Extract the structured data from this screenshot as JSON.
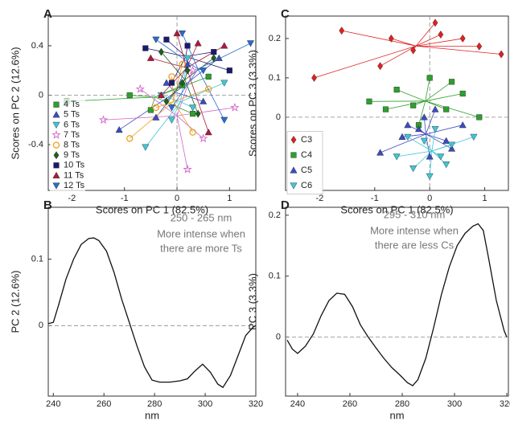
{
  "chart_data": [
    {
      "type": "scatter",
      "panel": "A",
      "xlabel": "Scores on PC 1 (82.5%)",
      "ylabel": "Scores on PC 2 (12.6%)",
      "xlim": [
        -2.45,
        1.5
      ],
      "ylim": [
        -0.77,
        0.64
      ],
      "xticks": [
        -2,
        -1,
        0,
        1
      ],
      "yticks": [
        -0.4,
        0,
        0.4
      ],
      "zero_lines": true,
      "legend": "lower left",
      "series": [
        {
          "name": "4 Ts",
          "color": "#2ca02c",
          "marker": "square",
          "x": [
            -2.1,
            -0.9,
            -0.5,
            0.1,
            0.3,
            0.6
          ],
          "y": [
            -0.05,
            0.0,
            -0.12,
            0.08,
            -0.15,
            0.15
          ]
        },
        {
          "name": "5 Ts",
          "color": "#3b4cc0",
          "marker": "triangle-up",
          "x": [
            -1.1,
            -0.4,
            0.2,
            0.5,
            -0.2,
            0.8
          ],
          "y": [
            -0.28,
            -0.18,
            0.25,
            -0.05,
            0.1,
            0.3
          ]
        },
        {
          "name": "6 Ts",
          "color": "#3fc6d6",
          "marker": "triangle-down",
          "x": [
            -0.6,
            -0.1,
            0.3,
            0.9,
            0.2,
            -0.3
          ],
          "y": [
            -0.42,
            -0.2,
            -0.1,
            0.1,
            0.3,
            0.0
          ]
        },
        {
          "name": "7 Ts",
          "color": "#d163c9",
          "marker": "star",
          "x": [
            -1.4,
            -0.7,
            0.2,
            0.5,
            1.1,
            0.3
          ],
          "y": [
            -0.2,
            0.05,
            -0.6,
            -0.35,
            -0.1,
            0.2
          ]
        },
        {
          "name": "8 Ts",
          "color": "#f0a020",
          "marker": "circle",
          "x": [
            -0.9,
            -0.4,
            -0.1,
            0.3,
            0.6,
            0.1
          ],
          "y": [
            -0.35,
            -0.1,
            0.15,
            -0.3,
            0.05,
            0.25
          ]
        },
        {
          "name": "9 Ts",
          "color": "#1e5f1e",
          "marker": "diamond",
          "x": [
            -0.3,
            0.1,
            0.4,
            0.7,
            -0.2,
            0.2
          ],
          "y": [
            0.35,
            0.1,
            -0.15,
            0.3,
            -0.05,
            0.2
          ]
        },
        {
          "name": "10 Ts",
          "color": "#1a1a6e",
          "marker": "square",
          "x": [
            -0.6,
            -0.2,
            0.2,
            0.7,
            1.0,
            -0.1
          ],
          "y": [
            0.38,
            0.45,
            0.4,
            0.35,
            0.2,
            0.1
          ]
        },
        {
          "name": "11 Ts",
          "color": "#b0183c",
          "marker": "triangle-up",
          "x": [
            -0.5,
            0.0,
            0.4,
            0.9,
            -0.3,
            0.6
          ],
          "y": [
            0.3,
            0.5,
            0.42,
            0.4,
            0.0,
            -0.3
          ]
        },
        {
          "name": "12 Ts",
          "color": "#2a6ad0",
          "marker": "triangle-down",
          "x": [
            -0.4,
            0.1,
            0.5,
            1.4,
            0.9,
            -0.1
          ],
          "y": [
            0.45,
            0.5,
            0.2,
            0.42,
            -0.2,
            -0.1
          ]
        }
      ]
    },
    {
      "type": "line",
      "panel": "B",
      "xlabel": "nm",
      "ylabel": "PC 2 (12.6%)",
      "xlim": [
        238,
        320
      ],
      "ylim": [
        -0.106,
        0.178
      ],
      "xticks": [
        240,
        260,
        280,
        300,
        320
      ],
      "yticks": [
        0,
        0.1
      ],
      "zero_lines": true,
      "color": "#111111",
      "annotations": [
        "250 - 265 nm",
        "More intense when",
        "there are more Ts"
      ],
      "x": [
        238,
        240,
        242,
        245,
        248,
        251,
        254,
        256,
        258,
        261,
        264,
        267,
        270,
        273,
        276,
        279,
        282,
        286,
        290,
        293,
        296,
        299,
        302,
        305,
        307,
        310,
        313,
        316,
        319,
        320
      ],
      "values": [
        0.003,
        0.005,
        0.03,
        0.07,
        0.1,
        0.122,
        0.131,
        0.132,
        0.128,
        0.112,
        0.08,
        0.04,
        0.005,
        -0.03,
        -0.062,
        -0.082,
        -0.085,
        -0.085,
        -0.083,
        -0.08,
        -0.068,
        -0.058,
        -0.07,
        -0.088,
        -0.093,
        -0.075,
        -0.045,
        -0.015,
        -0.002,
        0
      ]
    },
    {
      "type": "scatter",
      "panel": "C",
      "xlabel": "Scores on PC 1 (82.5%)",
      "ylabel": "Scores on PC 3 (3.3%)",
      "xlim": [
        -2.62,
        1.43
      ],
      "ylim": [
        -0.186,
        0.257
      ],
      "xticks": [
        -2,
        -1,
        0,
        1
      ],
      "yticks": [
        0,
        0.1,
        0.2
      ],
      "zero_lines": true,
      "legend": "lower left",
      "series": [
        {
          "name": "C3",
          "color": "#e02020",
          "marker": "diamond",
          "x": [
            -2.1,
            -1.6,
            -0.7,
            -0.3,
            0.2,
            0.6,
            0.9,
            1.3,
            -0.9,
            0.1
          ],
          "y": [
            0.1,
            0.22,
            0.2,
            0.17,
            0.21,
            0.2,
            0.18,
            0.16,
            0.13,
            0.24
          ]
        },
        {
          "name": "C4",
          "color": "#2ca02c",
          "marker": "square",
          "x": [
            -1.1,
            -0.6,
            -0.3,
            0.0,
            0.3,
            0.6,
            0.9,
            -0.2,
            0.4,
            -0.8
          ],
          "y": [
            0.04,
            0.07,
            0.03,
            0.1,
            0.02,
            0.06,
            0.0,
            -0.02,
            0.09,
            0.02
          ]
        },
        {
          "name": "C5",
          "color": "#3b4cc0",
          "marker": "triangle-up",
          "x": [
            -0.9,
            -0.5,
            -0.2,
            0.1,
            0.3,
            0.6,
            -0.1,
            0.0,
            -0.4,
            0.4
          ],
          "y": [
            -0.09,
            -0.05,
            -0.03,
            0.02,
            -0.06,
            -0.02,
            0.0,
            -0.1,
            -0.02,
            -0.08
          ]
        },
        {
          "name": "C6",
          "color": "#3fc6d6",
          "marker": "triangle-down",
          "x": [
            -0.6,
            -0.3,
            0.0,
            0.2,
            0.4,
            0.8,
            -0.1,
            0.3,
            -0.4,
            0.1
          ],
          "y": [
            -0.1,
            -0.13,
            -0.15,
            -0.1,
            -0.07,
            -0.05,
            -0.06,
            -0.12,
            -0.05,
            -0.03
          ]
        }
      ]
    },
    {
      "type": "line",
      "panel": "D",
      "xlabel": "nm",
      "ylabel": "PC 3 (3.3%)",
      "xlim": [
        235.4,
        320.6
      ],
      "ylim": [
        -0.097,
        0.213
      ],
      "xticks": [
        240,
        260,
        280,
        300,
        320
      ],
      "yticks": [
        0,
        0.1,
        0.2
      ],
      "zero_lines": true,
      "color": "#111111",
      "annotations": [
        "295 - 310 nm",
        "More intense when",
        "there are less Cs"
      ],
      "x": [
        236,
        238,
        240,
        243,
        246,
        249,
        252,
        255,
        258,
        261,
        264,
        267,
        270,
        273,
        276,
        279,
        282,
        284,
        286,
        289,
        292,
        295,
        298,
        301,
        304,
        307,
        309,
        311,
        313,
        316,
        319,
        320
      ],
      "values": [
        -0.005,
        -0.02,
        -0.027,
        -0.015,
        0.005,
        0.035,
        0.06,
        0.072,
        0.07,
        0.05,
        0.02,
        0.0,
        -0.018,
        -0.035,
        -0.05,
        -0.062,
        -0.075,
        -0.08,
        -0.07,
        -0.035,
        0.015,
        0.07,
        0.115,
        0.15,
        0.17,
        0.182,
        0.186,
        0.175,
        0.13,
        0.06,
        0.01,
        0
      ]
    }
  ]
}
